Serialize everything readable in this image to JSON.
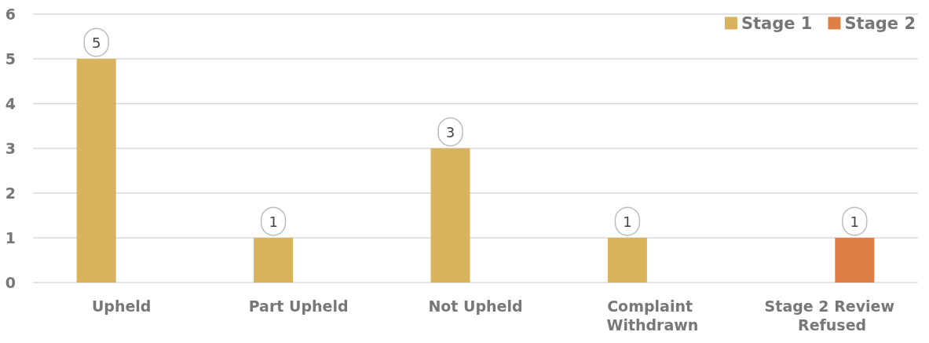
{
  "chart_data": {
    "type": "bar",
    "categories": [
      "Upheld",
      "Part Upheld",
      "Not Upheld",
      "Complaint Withdrawn",
      "Stage 2 Review Refused"
    ],
    "series": [
      {
        "name": "Stage 1",
        "color": "#d9b25c",
        "values": [
          5,
          1,
          3,
          1,
          null
        ]
      },
      {
        "name": "Stage 2",
        "color": "#e07f45",
        "values": [
          null,
          null,
          null,
          null,
          1
        ]
      }
    ],
    "ylim": [
      0,
      6
    ],
    "yticks": [
      0,
      1,
      2,
      3,
      4,
      5,
      6
    ],
    "grid": "y",
    "legend": "top right",
    "data_labels": true
  }
}
